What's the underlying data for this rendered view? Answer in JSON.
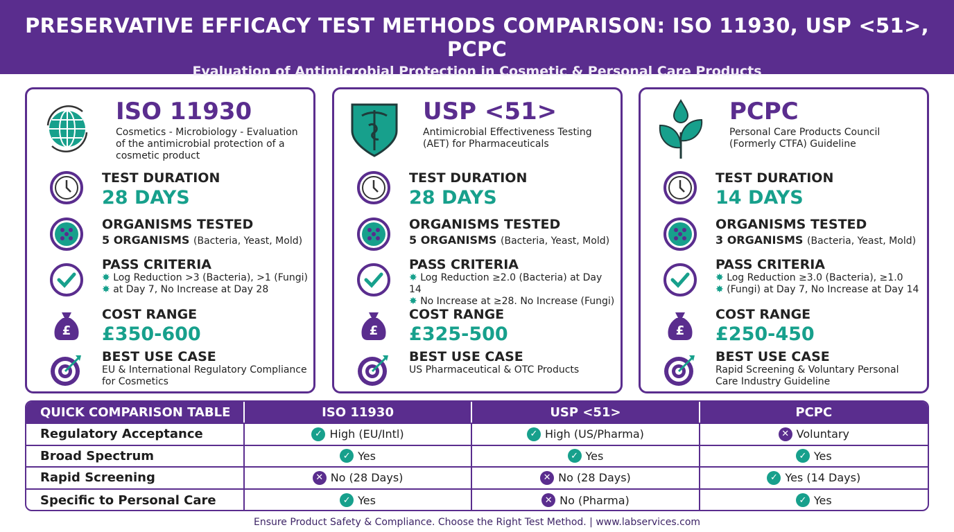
{
  "header": {
    "title": "PRESERVATIVE EFFICACY TEST METHODS COMPARISON: ISO 11930, USP <51>, PCPC",
    "subtitle": "Evaluation of Antimicrobial Protection in Cosmetic & Personal Care Products"
  },
  "colors": {
    "purple": "#5a2d8e",
    "teal": "#17a08c"
  },
  "labels": {
    "duration": "TEST DURATION",
    "organisms": "ORGANISMS TESTED",
    "pass": "PASS CRITERIA",
    "cost": "COST RANGE",
    "best": "BEST USE CASE"
  },
  "cards": [
    {
      "icon": "globe-icon",
      "title": "ISO 11930",
      "subtitle": "Cosmetics - Microbiology - Evaluation of the antimicrobial protection of a cosmetic product",
      "duration": "28 DAYS",
      "organisms": "5 ORGANISMS",
      "organisms_detail": "(Bacteria, Yeast, Mold)",
      "pass": [
        "Log Reduction >3 (Bacteria), >1 (Fungi)",
        "at Day 7, No Increase at Day 28"
      ],
      "cost": "£350-600",
      "best": "EU & International Regulatory Compliance for Cosmetics"
    },
    {
      "icon": "caduceus-shield-icon",
      "title": "USP <51>",
      "subtitle": "Antimicrobial Effectiveness Testing (AET) for Pharmaceuticals",
      "duration": "28 DAYS",
      "organisms": "5 ORGANISMS",
      "organisms_detail": "(Bacteria, Yeast, Mold)",
      "pass": [
        "Log Reduction ≥2.0 (Bacteria) at Day 14",
        "No Increase at ≥28. No Increase (Fungi)"
      ],
      "cost": "£325-500",
      "best": "US Pharmaceutical & OTC Products"
    },
    {
      "icon": "leaf-drop-icon",
      "title": "PCPC",
      "subtitle": "Personal Care Products Council (Formerly CTFA) Guideline",
      "duration": "14 DAYS",
      "organisms": "3 ORGANISMS",
      "organisms_detail": "(Bacteria, Yeast, Mold)",
      "pass": [
        "Log Reduction ≥3.0 (Bacteria), ≥1.0",
        "(Fungi) at Day 7, No Increase at Day 14"
      ],
      "cost": "£250-450",
      "best": "Rapid Screening & Voluntary Personal Care Industry Guideline"
    }
  ],
  "table": {
    "headers": [
      "QUICK COMPARISON TABLE",
      "ISO 11930",
      "USP <51>",
      "PCPC"
    ],
    "rows": [
      {
        "label": "Regulatory Acceptance",
        "cells": [
          {
            "ok": true,
            "text": "High (EU/Intl)"
          },
          {
            "ok": true,
            "text": "High (US/Pharma)"
          },
          {
            "ok": false,
            "text": "Voluntary"
          }
        ]
      },
      {
        "label": "Broad Spectrum",
        "cells": [
          {
            "ok": true,
            "text": "Yes"
          },
          {
            "ok": true,
            "text": "Yes"
          },
          {
            "ok": true,
            "text": "Yes"
          }
        ]
      },
      {
        "label": "Rapid Screening",
        "cells": [
          {
            "ok": false,
            "text": "No (28 Days)"
          },
          {
            "ok": false,
            "text": "No (28 Days)"
          },
          {
            "ok": true,
            "text": "Yes (14 Days)"
          }
        ]
      },
      {
        "label": "Specific to Personal Care",
        "cells": [
          {
            "ok": true,
            "text": "Yes"
          },
          {
            "ok": false,
            "text": "No (Pharma)"
          },
          {
            "ok": true,
            "text": "Yes"
          }
        ]
      }
    ]
  },
  "footer": "Ensure Product Safety & Compliance. Choose the Right Test Method. | www.labservices.com"
}
